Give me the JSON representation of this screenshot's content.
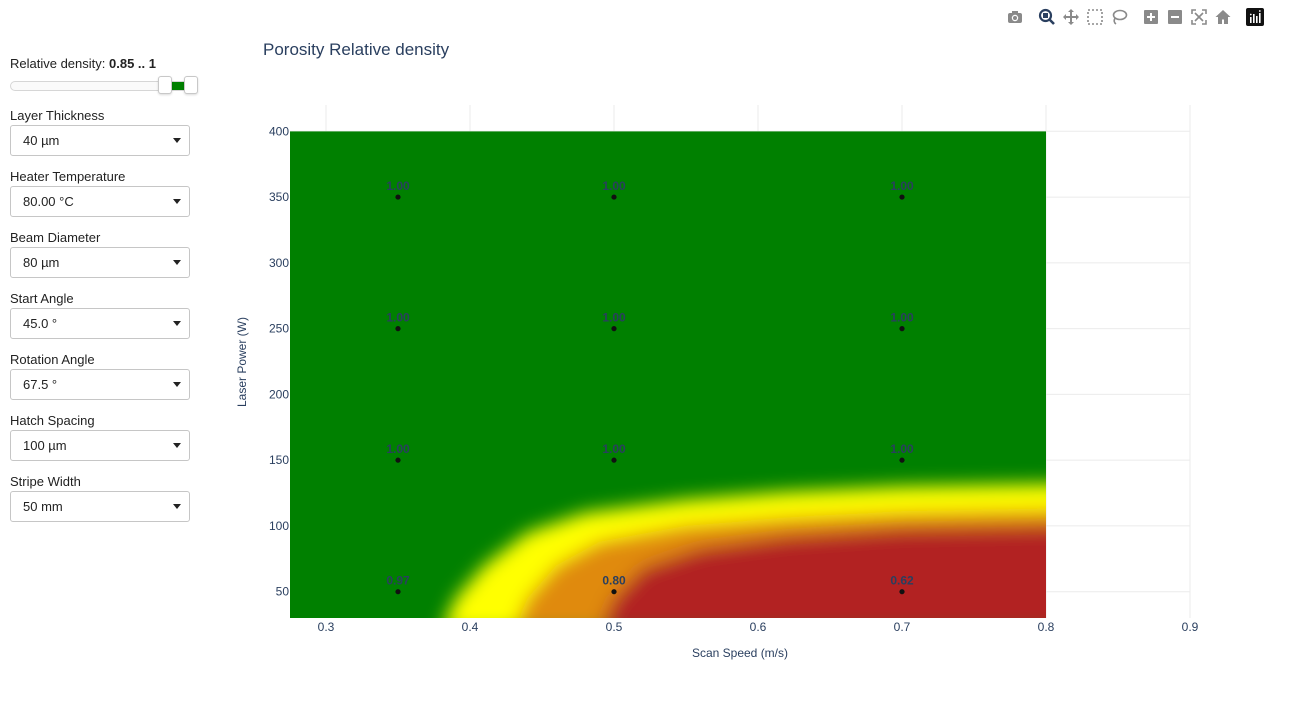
{
  "controls": {
    "density": {
      "label": "Relative density:",
      "value_text": "0.85 .. 1",
      "min": 0,
      "max": 1,
      "low": 0.85,
      "high": 1,
      "color": "#008000"
    },
    "dropdowns": [
      {
        "id": "layer-thickness",
        "label": "Layer Thickness",
        "value": "40 µm"
      },
      {
        "id": "heater-temperature",
        "label": "Heater Temperature",
        "value": "80.00 °C"
      },
      {
        "id": "beam-diameter",
        "label": "Beam Diameter",
        "value": "80 µm"
      },
      {
        "id": "start-angle",
        "label": "Start Angle",
        "value": "45.0 °"
      },
      {
        "id": "rotation-angle",
        "label": "Rotation Angle",
        "value": "67.5 °"
      },
      {
        "id": "hatch-spacing",
        "label": "Hatch Spacing",
        "value": "100 µm"
      },
      {
        "id": "stripe-width",
        "label": "Stripe Width",
        "value": "50 mm"
      }
    ]
  },
  "modebar": [
    "camera-icon",
    "zoom-icon",
    "pan-icon",
    "box-select-icon",
    "lasso-select-icon",
    "zoom-in-icon",
    "zoom-out-icon",
    "autoscale-icon",
    "reset-axes-icon",
    "plotly-logo-icon"
  ],
  "chart_data": {
    "type": "heatmap",
    "title": "Porosity Relative density",
    "xlabel": "Scan Speed (m/s)",
    "ylabel": "Laser Power (W)",
    "xlim": [
      0.275,
      0.9
    ],
    "ylim": [
      30,
      420
    ],
    "heatmap_extent": {
      "x": [
        0.275,
        0.8
      ],
      "y": [
        30,
        400
      ]
    },
    "xticks": [
      0.3,
      0.4,
      0.5,
      0.6,
      0.7,
      0.8,
      0.9
    ],
    "yticks": [
      50,
      100,
      150,
      200,
      250,
      300,
      350,
      400
    ],
    "colors": {
      "green": "#008000",
      "yellow": "#ffff00",
      "red": "#b22222",
      "orange": "#e08a10"
    },
    "points": [
      {
        "x": 0.35,
        "y": 350,
        "label": "1.00"
      },
      {
        "x": 0.5,
        "y": 350,
        "label": "1.00"
      },
      {
        "x": 0.7,
        "y": 350,
        "label": "1.00"
      },
      {
        "x": 0.35,
        "y": 250,
        "label": "1.00"
      },
      {
        "x": 0.5,
        "y": 250,
        "label": "1.00"
      },
      {
        "x": 0.7,
        "y": 250,
        "label": "1.00"
      },
      {
        "x": 0.35,
        "y": 150,
        "label": "1.00"
      },
      {
        "x": 0.5,
        "y": 150,
        "label": "1.00"
      },
      {
        "x": 0.7,
        "y": 150,
        "label": "1.00"
      },
      {
        "x": 0.35,
        "y": 50,
        "label": "0.97"
      },
      {
        "x": 0.5,
        "y": 50,
        "label": "0.80"
      },
      {
        "x": 0.7,
        "y": 50,
        "label": "0.62"
      }
    ]
  }
}
